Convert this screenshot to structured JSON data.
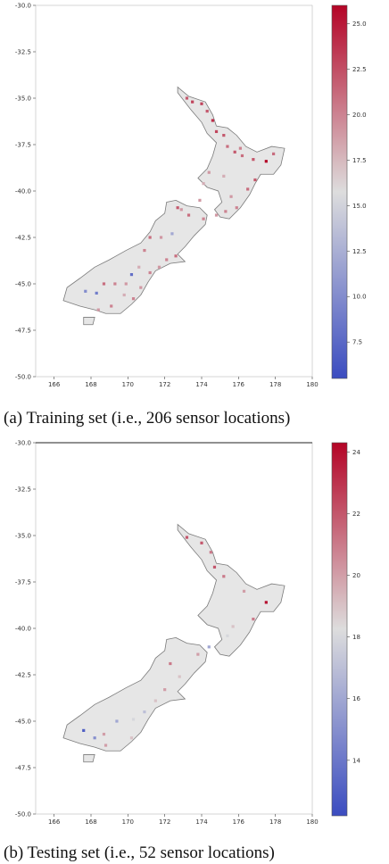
{
  "colors": {
    "land": "#e6e6e6",
    "coast": "#7a7a7a",
    "low": "#3b4cc0",
    "mid": "#dddddd",
    "high": "#b40426"
  },
  "chart_data": [
    {
      "type": "scatter",
      "caption": "(a) Training set (i.e., 206 sensor locations)",
      "xlim": [
        165,
        180
      ],
      "ylim": [
        -50.0,
        -30.0
      ],
      "x_ticks": [
        166,
        168,
        170,
        172,
        174,
        176,
        178,
        180
      ],
      "y_ticks": [
        -30.0,
        -32.5,
        -35.0,
        -37.5,
        -40.0,
        -42.5,
        -45.0,
        -47.5,
        -50.0
      ],
      "x_tick_labels": [
        "166",
        "168",
        "170",
        "172",
        "174",
        "176",
        "178",
        "180"
      ],
      "y_tick_labels": [
        "-30.0",
        "-32.5",
        "-35.0",
        "-37.5",
        "-40.0",
        "-42.5",
        "-45.0",
        "-47.5",
        "-50.0"
      ],
      "colorbar": {
        "vmin": 5.5,
        "vmax": 26,
        "ticks": [
          7.5,
          10.0,
          12.5,
          15.0,
          17.5,
          20.0,
          22.5,
          25.0
        ],
        "tick_labels": [
          "7.5",
          "10.0",
          "12.5",
          "15.0",
          "17.5",
          "20.0",
          "22.5",
          "25.0"
        ]
      },
      "points": [
        {
          "lon": 174.0,
          "lat": -35.3,
          "v": 23
        },
        {
          "lon": 174.3,
          "lat": -35.7,
          "v": 22
        },
        {
          "lon": 174.6,
          "lat": -36.2,
          "v": 24
        },
        {
          "lon": 174.8,
          "lat": -36.8,
          "v": 23
        },
        {
          "lon": 175.2,
          "lat": -37.0,
          "v": 22
        },
        {
          "lon": 175.4,
          "lat": -37.6,
          "v": 21
        },
        {
          "lon": 175.8,
          "lat": -37.9,
          "v": 22
        },
        {
          "lon": 176.2,
          "lat": -38.1,
          "v": 21
        },
        {
          "lon": 176.8,
          "lat": -38.3,
          "v": 22
        },
        {
          "lon": 177.5,
          "lat": -38.4,
          "v": 26
        },
        {
          "lon": 176.9,
          "lat": -39.4,
          "v": 22
        },
        {
          "lon": 176.5,
          "lat": -39.9,
          "v": 21
        },
        {
          "lon": 175.6,
          "lat": -40.3,
          "v": 19
        },
        {
          "lon": 175.2,
          "lat": -39.2,
          "v": 18
        },
        {
          "lon": 174.4,
          "lat": -39.0,
          "v": 19
        },
        {
          "lon": 174.1,
          "lat": -39.6,
          "v": 18
        },
        {
          "lon": 175.9,
          "lat": -40.9,
          "v": 20
        },
        {
          "lon": 175.3,
          "lat": -41.1,
          "v": 20
        },
        {
          "lon": 174.8,
          "lat": -41.3,
          "v": 19
        },
        {
          "lon": 174.1,
          "lat": -41.5,
          "v": 20
        },
        {
          "lon": 173.3,
          "lat": -41.3,
          "v": 21
        },
        {
          "lon": 172.9,
          "lat": -41.0,
          "v": 19
        },
        {
          "lon": 172.4,
          "lat": -42.3,
          "v": 12
        },
        {
          "lon": 171.8,
          "lat": -42.5,
          "v": 19
        },
        {
          "lon": 171.2,
          "lat": -42.5,
          "v": 21
        },
        {
          "lon": 170.9,
          "lat": -43.2,
          "v": 20
        },
        {
          "lon": 172.6,
          "lat": -43.5,
          "v": 21
        },
        {
          "lon": 172.1,
          "lat": -43.7,
          "v": 20
        },
        {
          "lon": 171.7,
          "lat": -44.1,
          "v": 19
        },
        {
          "lon": 171.2,
          "lat": -44.4,
          "v": 20
        },
        {
          "lon": 170.6,
          "lat": -44.1,
          "v": 18
        },
        {
          "lon": 170.2,
          "lat": -44.5,
          "v": 8
        },
        {
          "lon": 169.9,
          "lat": -45.0,
          "v": 19
        },
        {
          "lon": 170.7,
          "lat": -45.2,
          "v": 19
        },
        {
          "lon": 170.3,
          "lat": -45.8,
          "v": 20
        },
        {
          "lon": 169.3,
          "lat": -45.0,
          "v": 20
        },
        {
          "lon": 168.7,
          "lat": -45.0,
          "v": 21
        },
        {
          "lon": 168.3,
          "lat": -45.5,
          "v": 9
        },
        {
          "lon": 167.7,
          "lat": -45.4,
          "v": 10
        },
        {
          "lon": 168.4,
          "lat": -46.4,
          "v": 19
        },
        {
          "lon": 169.1,
          "lat": -46.2,
          "v": 20
        },
        {
          "lon": 169.8,
          "lat": -45.6,
          "v": 18
        },
        {
          "lon": 173.5,
          "lat": -35.2,
          "v": 23
        },
        {
          "lon": 173.2,
          "lat": -35.0,
          "v": 22
        },
        {
          "lon": 176.1,
          "lat": -37.7,
          "v": 20
        },
        {
          "lon": 177.9,
          "lat": -38.0,
          "v": 21
        },
        {
          "lon": 173.9,
          "lat": -40.5,
          "v": 19
        },
        {
          "lon": 172.7,
          "lat": -40.9,
          "v": 22
        }
      ]
    },
    {
      "type": "scatter",
      "caption": "(b) Testing set (i.e., 52 sensor locations)",
      "xlim": [
        165,
        180
      ],
      "ylim": [
        -50.0,
        -30.0
      ],
      "x_ticks": [
        166,
        168,
        170,
        172,
        174,
        176,
        178,
        180
      ],
      "y_ticks": [
        -30.0,
        -32.5,
        -35.0,
        -37.5,
        -40.0,
        -42.5,
        -45.0,
        -47.5,
        -50.0
      ],
      "x_tick_labels": [
        "166",
        "168",
        "170",
        "172",
        "174",
        "176",
        "178",
        "180"
      ],
      "y_tick_labels": [
        "-30.0",
        "-32.5",
        "-35.0",
        "-37.5",
        "-40.0",
        "-42.5",
        "-45.0",
        "-47.5",
        "-50.0"
      ],
      "colorbar": {
        "vmin": 12.2,
        "vmax": 24.3,
        "ticks": [
          14,
          16,
          18,
          20,
          22,
          24
        ],
        "tick_labels": [
          "14",
          "16",
          "18",
          "20",
          "22",
          "24"
        ]
      },
      "points": [
        {
          "lon": 174.0,
          "lat": -35.4,
          "v": 22
        },
        {
          "lon": 174.5,
          "lat": -35.9,
          "v": 21
        },
        {
          "lon": 174.7,
          "lat": -36.7,
          "v": 22
        },
        {
          "lon": 175.2,
          "lat": -37.2,
          "v": 21
        },
        {
          "lon": 177.5,
          "lat": -38.6,
          "v": 24
        },
        {
          "lon": 176.8,
          "lat": -39.5,
          "v": 21
        },
        {
          "lon": 175.7,
          "lat": -39.9,
          "v": 19
        },
        {
          "lon": 175.4,
          "lat": -40.4,
          "v": 18
        },
        {
          "lon": 174.4,
          "lat": -41.0,
          "v": 16
        },
        {
          "lon": 173.8,
          "lat": -41.4,
          "v": 20
        },
        {
          "lon": 172.3,
          "lat": -41.9,
          "v": 21
        },
        {
          "lon": 172.0,
          "lat": -43.3,
          "v": 20
        },
        {
          "lon": 171.5,
          "lat": -43.9,
          "v": 19
        },
        {
          "lon": 170.9,
          "lat": -44.5,
          "v": 17
        },
        {
          "lon": 170.3,
          "lat": -44.9,
          "v": 18
        },
        {
          "lon": 169.4,
          "lat": -45.0,
          "v": 16
        },
        {
          "lon": 168.7,
          "lat": -45.7,
          "v": 20
        },
        {
          "lon": 168.2,
          "lat": -45.9,
          "v": 15
        },
        {
          "lon": 167.6,
          "lat": -45.5,
          "v": 13
        },
        {
          "lon": 168.8,
          "lat": -46.3,
          "v": 20
        },
        {
          "lon": 170.2,
          "lat": -45.9,
          "v": 19
        },
        {
          "lon": 173.2,
          "lat": -35.1,
          "v": 22
        },
        {
          "lon": 176.3,
          "lat": -38.0,
          "v": 20
        },
        {
          "lon": 172.8,
          "lat": -42.6,
          "v": 19
        }
      ]
    }
  ]
}
